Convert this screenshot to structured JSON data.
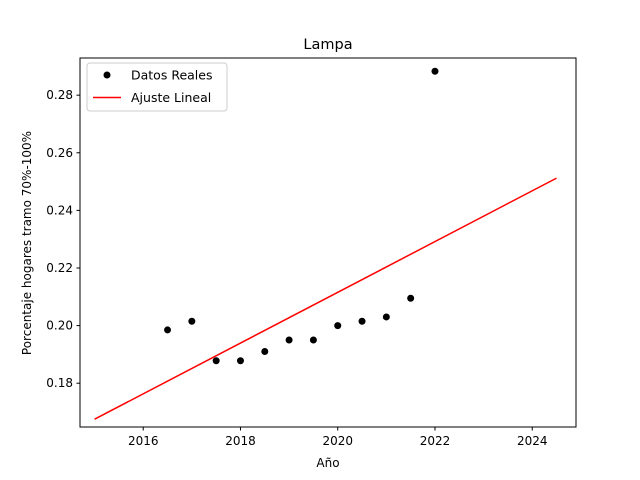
{
  "chart_data": {
    "type": "scatter",
    "title": "Lampa",
    "xlabel": "Año",
    "ylabel": "Porcentaje hogares tramo 70%-100%",
    "xlim": [
      2014.7,
      2024.9
    ],
    "ylim": [
      0.1648,
      0.2929
    ],
    "x_ticks": [
      2016,
      2018,
      2020,
      2022,
      2024
    ],
    "y_ticks": [
      0.18,
      0.2,
      0.22,
      0.24,
      0.26,
      0.28
    ],
    "grid": false,
    "legend_position": "upper left",
    "series": [
      {
        "name": "Datos Reales",
        "kind": "scatter",
        "color": "#000000",
        "points": [
          {
            "x": 2016.5,
            "y": 0.1985
          },
          {
            "x": 2017.0,
            "y": 0.2015
          },
          {
            "x": 2017.5,
            "y": 0.1878
          },
          {
            "x": 2018.0,
            "y": 0.1878
          },
          {
            "x": 2018.5,
            "y": 0.191
          },
          {
            "x": 2019.0,
            "y": 0.195
          },
          {
            "x": 2019.5,
            "y": 0.195
          },
          {
            "x": 2020.0,
            "y": 0.2
          },
          {
            "x": 2020.5,
            "y": 0.2015
          },
          {
            "x": 2021.0,
            "y": 0.203
          },
          {
            "x": 2021.5,
            "y": 0.2095
          },
          {
            "x": 2022.0,
            "y": 0.2883
          }
        ]
      },
      {
        "name": "Ajuste Lineal",
        "kind": "line",
        "color": "#ff0000",
        "points": [
          {
            "x": 2015.0,
            "y": 0.1675
          },
          {
            "x": 2024.5,
            "y": 0.2512
          }
        ]
      }
    ]
  }
}
